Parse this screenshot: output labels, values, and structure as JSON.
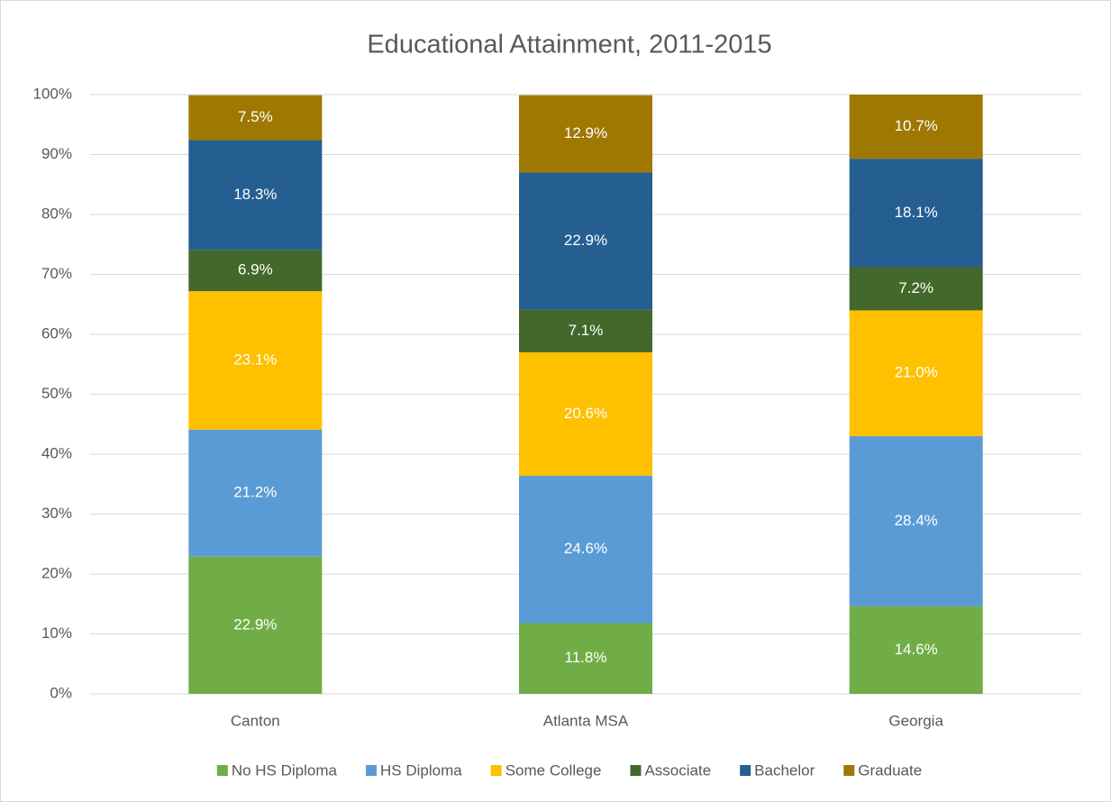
{
  "chart_data": {
    "type": "stacked_bar",
    "title": "Educational Attainment, 2011-2015",
    "categories": [
      "Canton",
      "Atlanta MSA",
      "Georgia"
    ],
    "series": [
      {
        "name": "No HS Diploma",
        "color": "#70ad47",
        "values": [
          22.9,
          11.8,
          14.6
        ],
        "value_labels": [
          "22.9%",
          "11.8%",
          "14.6%"
        ]
      },
      {
        "name": "HS Diploma",
        "color": "#5b9bd5",
        "values": [
          21.2,
          24.6,
          28.4
        ],
        "value_labels": [
          "21.2%",
          "24.6%",
          "28.4%"
        ]
      },
      {
        "name": "Some College",
        "color": "#ffc000",
        "values": [
          23.1,
          20.6,
          21.0
        ],
        "value_labels": [
          "23.1%",
          "20.6%",
          "21.0%"
        ]
      },
      {
        "name": "Associate",
        "color": "#43682b",
        "values": [
          6.9,
          7.1,
          7.2
        ],
        "value_labels": [
          "6.9%",
          "7.1%",
          "7.2%"
        ]
      },
      {
        "name": "Bachelor",
        "color": "#255e91",
        "values": [
          18.3,
          22.9,
          18.1
        ],
        "value_labels": [
          "18.3%",
          "22.9%",
          "18.1%"
        ]
      },
      {
        "name": "Graduate",
        "color": "#9e7800",
        "values": [
          7.5,
          12.9,
          10.7
        ],
        "value_labels": [
          "7.5%",
          "12.9%",
          "10.7%"
        ]
      }
    ],
    "ylim": [
      0,
      100
    ],
    "yticks": [
      {
        "value": 0,
        "label": "0%"
      },
      {
        "value": 10,
        "label": "10%"
      },
      {
        "value": 20,
        "label": "20%"
      },
      {
        "value": 30,
        "label": "30%"
      },
      {
        "value": 40,
        "label": "40%"
      },
      {
        "value": 50,
        "label": "50%"
      },
      {
        "value": 60,
        "label": "60%"
      },
      {
        "value": 70,
        "label": "70%"
      },
      {
        "value": 80,
        "label": "80%"
      },
      {
        "value": 90,
        "label": "90%"
      },
      {
        "value": 100,
        "label": "100%"
      }
    ],
    "grid": true,
    "legend": "bottom"
  }
}
